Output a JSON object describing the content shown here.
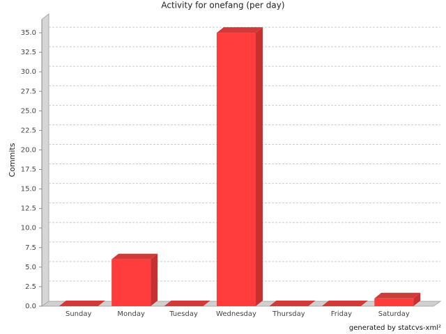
{
  "chart_data": {
    "type": "bar3d",
    "title": "Activity for onefang (per day)",
    "y_label": "Commits",
    "categories": [
      "Sunday",
      "Monday",
      "Tuesday",
      "Wednesday",
      "Thursday",
      "Friday",
      "Saturday"
    ],
    "values": [
      0,
      6,
      0,
      35,
      0,
      0,
      1
    ],
    "color": "#ff3333",
    "ylim": [
      0,
      37.5
    ],
    "yticks": [
      {
        "value": 0,
        "label": "0.0"
      },
      {
        "value": 2.5,
        "label": "2.5"
      },
      {
        "value": 5,
        "label": "5.0"
      },
      {
        "value": 7.5,
        "label": "7.5"
      },
      {
        "value": 10,
        "label": "10.0"
      },
      {
        "value": 12.5,
        "label": "12.5"
      },
      {
        "value": 15,
        "label": "15.0"
      },
      {
        "value": 17.5,
        "label": "17.5"
      },
      {
        "value": 20,
        "label": "20.0"
      },
      {
        "value": 22.5,
        "label": "22.5"
      },
      {
        "value": 25,
        "label": "25.0"
      },
      {
        "value": 27.5,
        "label": "27.5"
      },
      {
        "value": 30,
        "label": "30.0"
      },
      {
        "value": 32.5,
        "label": "32.5"
      },
      {
        "value": 35,
        "label": "35.0"
      }
    ],
    "grid": true,
    "footer": "generated by statcvs-xml²"
  }
}
